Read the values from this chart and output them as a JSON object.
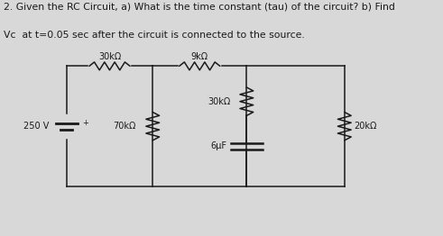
{
  "title_line1": "2. Given the RC Circuit, a) What is the time constant (tau) of the circuit? b) Find",
  "title_line2": "Vc  at t=0.05 sec after the circuit is connected to the source.",
  "bg_color": "#d8d8d8",
  "line_color": "#1a1a1a",
  "label_30k_top": "30kΩ",
  "label_9k_top": "9kΩ",
  "label_30k_mid": "30kΩ",
  "label_70k": "70kΩ",
  "label_20k": "20kΩ",
  "label_6uF": "6μF",
  "label_250V": "250 V",
  "font_size_title": 7.8,
  "font_size_label": 7.0
}
